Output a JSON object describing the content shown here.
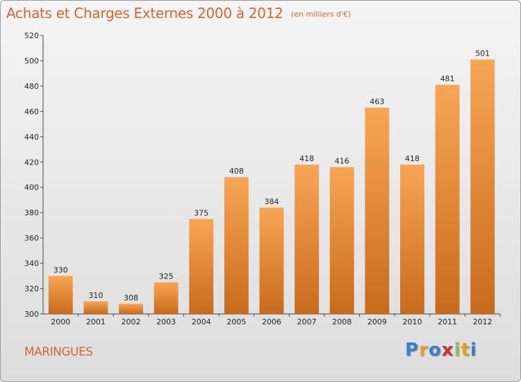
{
  "header": {
    "title": "Achats et Charges Externes 2000 à 2012",
    "unit": "(en milliers d'€)"
  },
  "footer": {
    "commune": "MARINGUES",
    "brand": [
      "P",
      "r",
      "o",
      "x",
      "i",
      "t",
      "i"
    ],
    "brand_colors": [
      "#3a7fd5",
      "#e8a020",
      "#3a7fd5",
      "#d03030",
      "#8bc34a",
      "#e8a020",
      "#3a7fd5"
    ]
  },
  "colors": {
    "bar_top": "#f7a655",
    "bar_bottom": "#c96a1c",
    "accent": "#d4652e"
  },
  "chart_data": {
    "type": "bar",
    "title": "Achats et Charges Externes 2000 à 2012",
    "subtitle": "(en milliers d'€)",
    "categories": [
      "2000",
      "2001",
      "2002",
      "2003",
      "2004",
      "2005",
      "2006",
      "2007",
      "2008",
      "2009",
      "2010",
      "2011",
      "2012"
    ],
    "values": [
      330,
      310,
      308,
      325,
      375,
      408,
      384,
      418,
      416,
      463,
      418,
      481,
      501
    ],
    "ylim": [
      300,
      520
    ],
    "yticks": [
      300,
      320,
      340,
      360,
      380,
      400,
      420,
      440,
      460,
      480,
      500,
      520
    ],
    "grid": false,
    "legend": "none"
  }
}
